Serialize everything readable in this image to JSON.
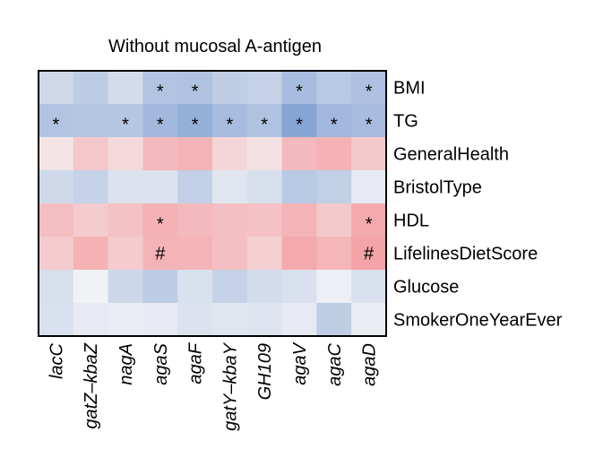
{
  "chart_data": {
    "type": "heatmap",
    "title": "Without mucosal A-antigen",
    "columns": [
      "lacC",
      "gatZ–kbaZ",
      "nagA",
      "agaS",
      "agaF",
      "gatY–kbaY",
      "GH109",
      "agaV",
      "agaC",
      "agaD"
    ],
    "rows": [
      "BMI",
      "TG",
      "GeneralHealth",
      "BristolType",
      "HDL",
      "LifelinesDietScore",
      "Glucose",
      "SmokerOneYearEver"
    ],
    "value_range": [
      -1,
      1
    ],
    "color_scale": {
      "negative": "#6f94cc",
      "zero": "#f4f4f6",
      "positive": "#f4898d"
    },
    "values": [
      [
        -0.28,
        -0.42,
        -0.25,
        -0.5,
        -0.52,
        -0.4,
        -0.36,
        -0.58,
        -0.45,
        -0.53
      ],
      [
        -0.5,
        -0.48,
        -0.47,
        -0.62,
        -0.72,
        -0.58,
        -0.52,
        -0.82,
        -0.62,
        -0.58
      ],
      [
        0.15,
        0.42,
        0.25,
        0.55,
        0.6,
        0.28,
        0.18,
        0.55,
        0.62,
        0.4
      ],
      [
        -0.28,
        -0.35,
        -0.18,
        -0.18,
        -0.38,
        -0.15,
        -0.22,
        -0.45,
        -0.38,
        -0.1
      ],
      [
        0.5,
        0.38,
        0.48,
        0.62,
        0.55,
        0.5,
        0.48,
        0.6,
        0.4,
        0.7
      ],
      [
        0.38,
        0.62,
        0.38,
        0.6,
        0.6,
        0.5,
        0.35,
        0.7,
        0.58,
        0.75
      ],
      [
        -0.22,
        -0.02,
        -0.3,
        -0.42,
        -0.2,
        -0.35,
        -0.25,
        -0.2,
        -0.05,
        -0.2
      ],
      [
        -0.2,
        -0.1,
        -0.08,
        -0.1,
        -0.18,
        -0.15,
        -0.17,
        -0.1,
        -0.4,
        -0.07
      ]
    ],
    "annotations": [
      [
        "",
        "",
        "",
        "*",
        "*",
        "",
        "",
        "*",
        "",
        "*"
      ],
      [
        "*",
        "",
        "*",
        "*",
        "*",
        "*",
        "*",
        "*",
        "*",
        "*"
      ],
      [
        "",
        "",
        "",
        "",
        "",
        "",
        "",
        "",
        "",
        ""
      ],
      [
        "",
        "",
        "",
        "",
        "",
        "",
        "",
        "",
        "",
        ""
      ],
      [
        "",
        "",
        "",
        "*",
        "",
        "",
        "",
        "",
        "",
        "*"
      ],
      [
        "",
        "",
        "",
        "#",
        "",
        "",
        "",
        "",
        "",
        "#"
      ],
      [
        "",
        "",
        "",
        "",
        "",
        "",
        "",
        "",
        "",
        ""
      ],
      [
        "",
        "",
        "",
        "",
        "",
        "",
        "",
        "",
        "",
        ""
      ]
    ]
  }
}
